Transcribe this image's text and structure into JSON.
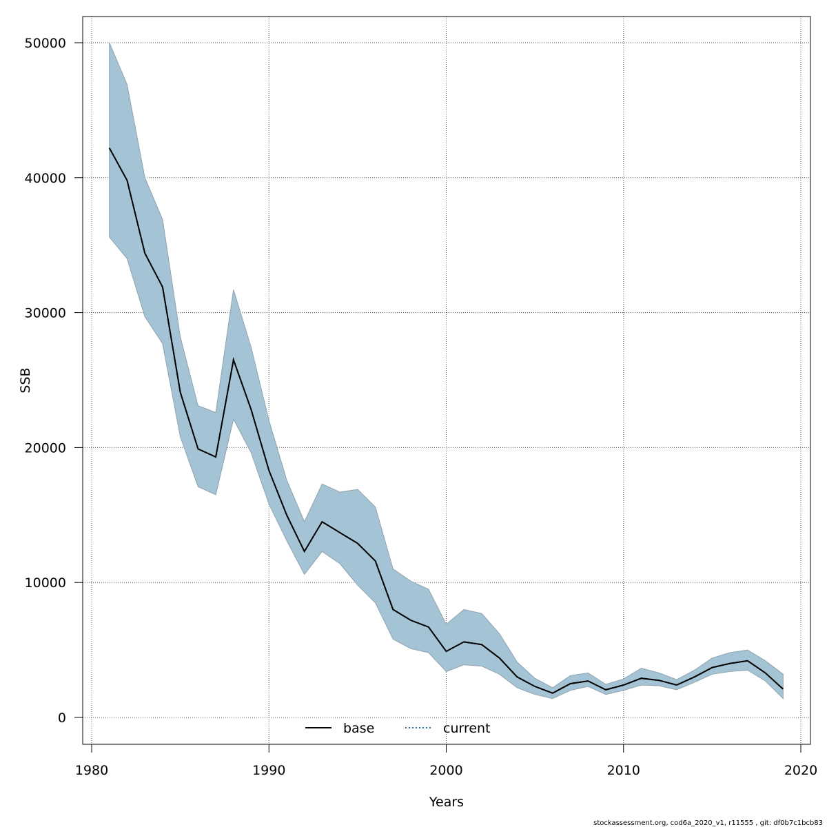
{
  "chart_data": {
    "type": "line",
    "title": "",
    "xlabel": "Years",
    "ylabel": "SSB",
    "xlim": [
      1980,
      2020
    ],
    "ylim": [
      0,
      50000
    ],
    "x_ticks": [
      1980,
      1990,
      2000,
      2010,
      2020
    ],
    "y_ticks": [
      0,
      10000,
      20000,
      30000,
      40000,
      50000
    ],
    "x_tick_labels": [
      "1980",
      "1990",
      "2000",
      "2010",
      "2020"
    ],
    "y_tick_labels": [
      "0",
      "10000",
      "20000",
      "30000",
      "40000",
      "50000"
    ],
    "grid": true,
    "legend_position": "bottom-center",
    "x": [
      1981,
      1982,
      1983,
      1984,
      1985,
      1986,
      1987,
      1988,
      1989,
      1990,
      1991,
      1992,
      1993,
      1994,
      1995,
      1996,
      1997,
      1998,
      1999,
      2000,
      2001,
      2002,
      2003,
      2004,
      2005,
      2006,
      2007,
      2008,
      2009,
      2010,
      2011,
      2012,
      2013,
      2014,
      2015,
      2016,
      2017,
      2018,
      2019
    ],
    "series": [
      {
        "name": "base",
        "style": "solid",
        "color": "#000000",
        "values": [
          42200,
          39800,
          34400,
          31900,
          24100,
          19900,
          19300,
          26500,
          22800,
          18300,
          15000,
          12300,
          14500,
          13700,
          12900,
          11600,
          8000,
          7200,
          6700,
          4900,
          5600,
          5400,
          4400,
          3000,
          2300,
          1800,
          2500,
          2700,
          2050,
          2400,
          2900,
          2750,
          2400,
          3000,
          3700,
          4000,
          4200,
          3300,
          2100
        ]
      },
      {
        "name": "current",
        "style": "dotted",
        "color": "#1f6fa8",
        "values": [
          42200,
          39800,
          34400,
          31900,
          24100,
          19900,
          19300,
          26500,
          22800,
          18300,
          15000,
          12300,
          14500,
          13700,
          12900,
          11600,
          8000,
          7200,
          6700,
          4900,
          5600,
          5400,
          4400,
          3000,
          2300,
          1800,
          2500,
          2700,
          2050,
          2400,
          2900,
          2750,
          2400,
          3000,
          3700,
          4000,
          4200,
          3300,
          2100
        ]
      }
    ],
    "confidence_band": {
      "lower": [
        35600,
        34000,
        29700,
        27700,
        20800,
        17100,
        16500,
        22100,
        19600,
        15800,
        13100,
        10600,
        12300,
        11400,
        9800,
        8500,
        5800,
        5100,
        4800,
        3400,
        3900,
        3800,
        3200,
        2200,
        1700,
        1400,
        2000,
        2300,
        1700,
        2000,
        2400,
        2350,
        2050,
        2600,
        3200,
        3400,
        3500,
        2700,
        1400
      ],
      "upper": [
        50000,
        46900,
        40000,
        36900,
        28200,
        23100,
        22600,
        31700,
        27400,
        22000,
        17600,
        14500,
        17300,
        16700,
        16900,
        15600,
        11000,
        10100,
        9500,
        6900,
        8000,
        7700,
        6200,
        4100,
        2900,
        2200,
        3100,
        3300,
        2450,
        2850,
        3650,
        3300,
        2800,
        3500,
        4400,
        4800,
        5000,
        4200,
        3200
      ],
      "color": "#a4c4d5",
      "stroke": "#8fa3ae"
    }
  },
  "legend": {
    "base_label": "base",
    "current_label": "current"
  },
  "footer": {
    "text": "stockassessment.org, cod6a_2020_v1, r11555 , git: df0b7c1bcb83"
  }
}
